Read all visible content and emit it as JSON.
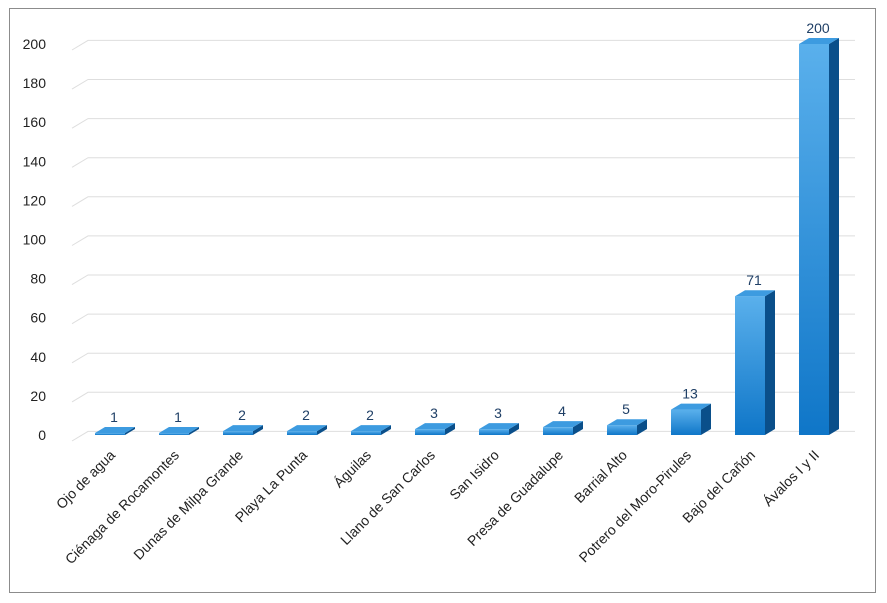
{
  "chart_data": {
    "type": "bar",
    "categories": [
      "Ojo de agua",
      "Ciénaga de Rocamontes",
      "Dunas de Milpa Grande",
      "Playa La Punta",
      "Águilas",
      "Llano de San Carlos",
      "San Isidro",
      "Presa de Guadalupe",
      "Barrial Alto",
      "Potrero del Moro-Pirules",
      "Bajo del Cañón",
      "Ávalos I y II"
    ],
    "values": [
      1,
      1,
      2,
      2,
      2,
      3,
      3,
      4,
      5,
      13,
      71,
      200
    ],
    "ylim": [
      0,
      200
    ],
    "yticks": [
      0,
      20,
      40,
      60,
      80,
      100,
      120,
      140,
      160,
      180,
      200
    ],
    "grid": true,
    "style": "3d-column",
    "colors": {
      "bar_front_top": "#5ab0ec",
      "bar_front_bottom": "#0f76c8",
      "bar_side": "#0a4f8a",
      "bar_top": "#3d9be0",
      "grid": "#dedede",
      "value_label": "#1f3f66"
    }
  }
}
